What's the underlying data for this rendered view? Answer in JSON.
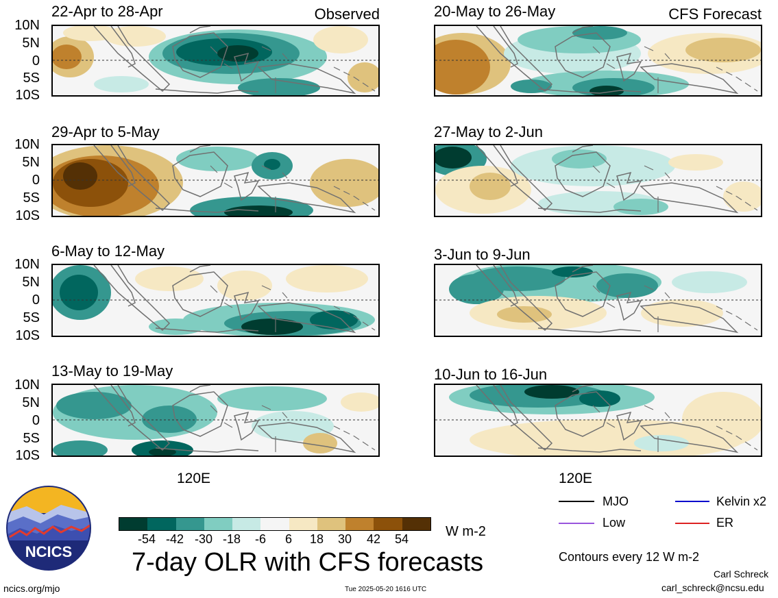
{
  "header": {
    "observed_label": "Observed",
    "forecast_label": "CFS Forecast"
  },
  "observed_panels": [
    {
      "title": "22-Apr to 28-Apr"
    },
    {
      "title": "29-Apr to 5-May"
    },
    {
      "title": "6-May to 12-May"
    },
    {
      "title": "13-May to 19-May"
    }
  ],
  "forecast_panels": [
    {
      "title": "20-May to 26-May"
    },
    {
      "title": "27-May to 2-Jun"
    },
    {
      "title": "3-Jun to 9-Jun"
    },
    {
      "title": "10-Jun to 16-Jun"
    }
  ],
  "lat_ticks": [
    "10N",
    "5N",
    "0",
    "5S",
    "10S"
  ],
  "lon_tick": "120E",
  "colorbar": {
    "labels": [
      "-54",
      "-42",
      "-30",
      "-18",
      "-6",
      "6",
      "18",
      "30",
      "42",
      "54"
    ],
    "colors": [
      "#003c30",
      "#01665e",
      "#35978f",
      "#80cdc1",
      "#c7eae5",
      "#f5f5f5",
      "#f6e8c3",
      "#dfc27d",
      "#bf812d",
      "#8c510a",
      "#543005"
    ],
    "units": "W m-2"
  },
  "main_title": "7-day OLR with CFS forecasts",
  "legend": {
    "items": [
      {
        "label": "MJO",
        "color": "#000000"
      },
      {
        "label": "Kelvin x2",
        "color": "#0000cc"
      },
      {
        "label": "Low",
        "color": "#9955dd"
      },
      {
        "label": "ER",
        "color": "#dd2222"
      }
    ],
    "contours_note": "Contours every 12 W m-2"
  },
  "logo_text": "NCICS",
  "footer": {
    "site": "ncics.org/mjo",
    "timestamp": "Tue 2025-05-20 1616 UTC",
    "author": "Carl Schreck",
    "email": "carl_schreck@ncsu.edu"
  }
}
